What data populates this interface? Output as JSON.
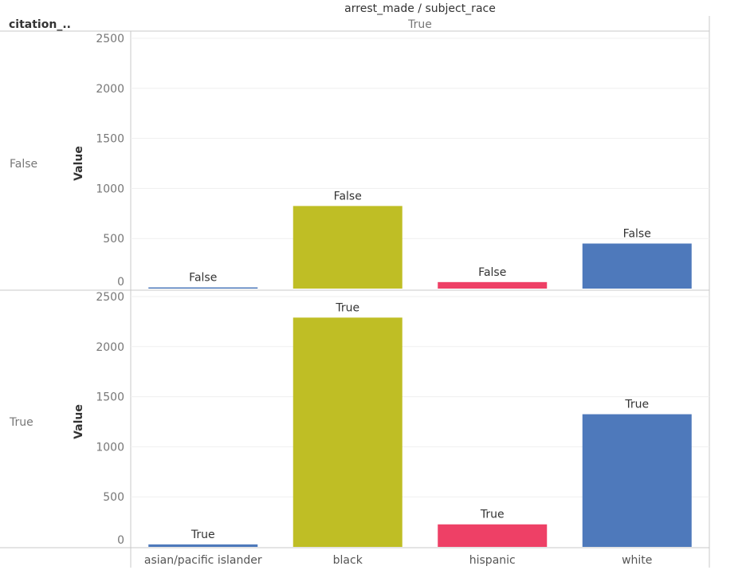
{
  "chart_data": {
    "type": "bar",
    "title": "arrest_made / subject_race",
    "row_header": "citation_..",
    "column_value": "True",
    "ylabel": "Value",
    "ylim": [
      0,
      2500
    ],
    "yticks": [
      0,
      500,
      1000,
      1500,
      2000,
      2500
    ],
    "categories": [
      "asian/pacific islander",
      "black",
      "hispanic",
      "white"
    ],
    "colors": [
      "#4e79bb",
      "#bfbe25",
      "#ee4066",
      "#4e79bb"
    ],
    "grid": true,
    "legend": "none",
    "series": [
      {
        "name": "False",
        "label": "False",
        "values": [
          10,
          825,
          65,
          450
        ]
      },
      {
        "name": "True",
        "label": "True",
        "values": [
          25,
          2290,
          225,
          1325
        ]
      }
    ]
  }
}
